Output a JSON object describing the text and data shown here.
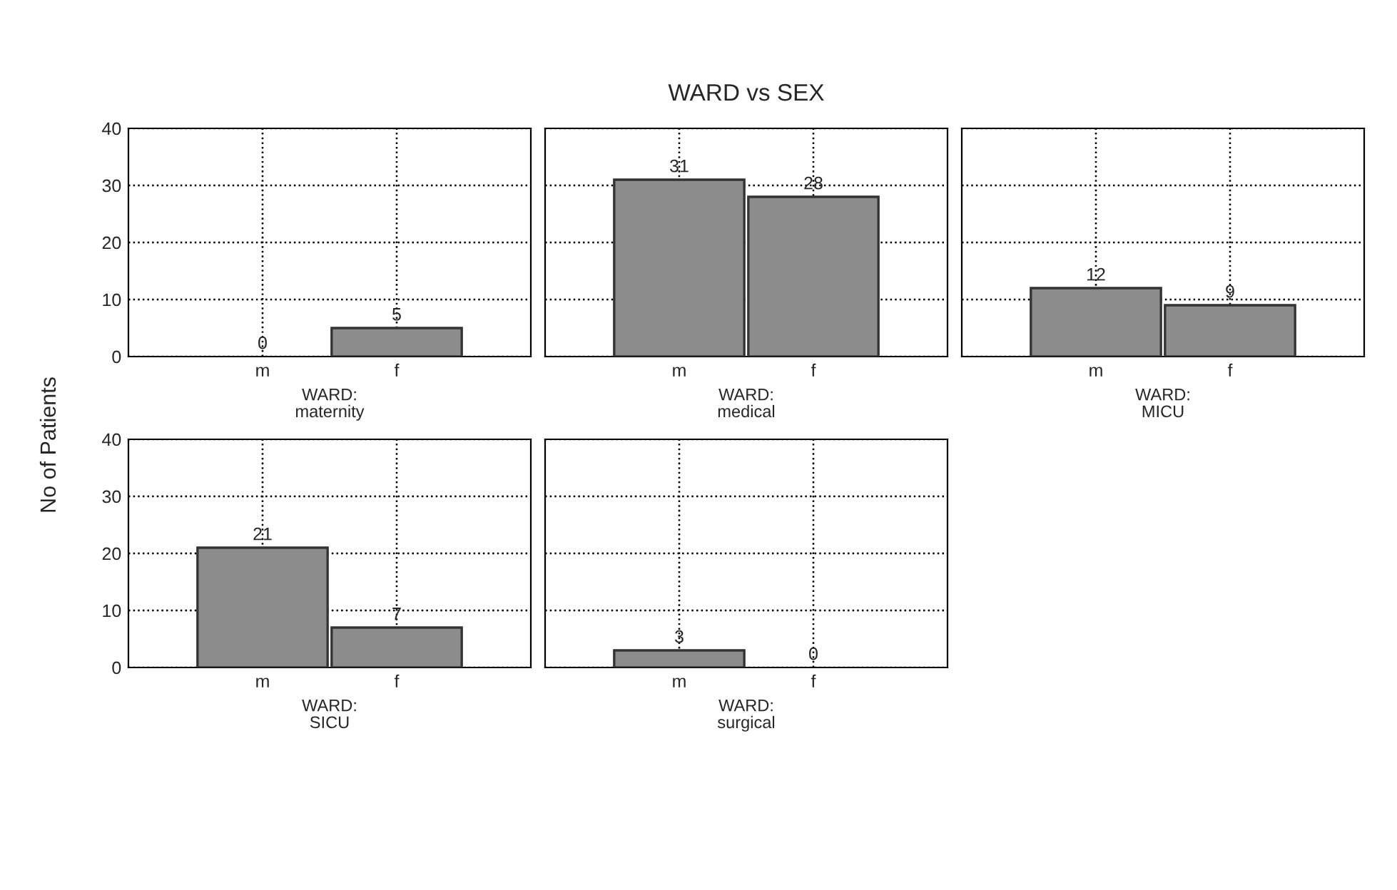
{
  "chart_data": [
    {
      "type": "bar",
      "ylabel": "No of Patients",
      "xlabel": "WARD:\nmaternity",
      "categories": [
        "m",
        "f"
      ],
      "values": [
        0,
        5
      ],
      "color": "#8c8c8c",
      "ylim": [
        0,
        40
      ],
      "yticks": [
        0,
        10,
        20,
        30,
        40
      ],
      "grid": true,
      "data_labels": true
    },
    {
      "type": "bar",
      "title": "WARD vs SEX",
      "xlabel": "WARD:\nmedical",
      "categories": [
        "m",
        "f"
      ],
      "values": [
        31,
        28
      ],
      "color": "#8c8c8c",
      "ylim": [
        0,
        40
      ],
      "yticks": [
        0,
        10,
        20,
        30,
        40
      ],
      "grid": true,
      "data_labels": true,
      "tick_labels": "x"
    },
    {
      "type": "bar",
      "xlabel": "WARD:\nMICU",
      "categories": [
        "m",
        "f"
      ],
      "values": [
        12,
        9
      ],
      "color": "#8c8c8c",
      "ylim": [
        0,
        40
      ],
      "yticks": [
        0,
        10,
        20,
        30,
        40
      ],
      "grid": true,
      "data_labels": true,
      "tick_labels": "x"
    },
    {
      "type": "bar",
      "xlabel": "WARD:\nSICU",
      "categories": [
        "m",
        "f"
      ],
      "values": [
        21,
        7
      ],
      "color": "#8c8c8c",
      "ylim": [
        0,
        40
      ],
      "yticks": [
        0,
        10,
        20,
        30,
        40
      ],
      "grid": true,
      "data_labels": true
    },
    {
      "type": "bar",
      "xlabel": "WARD:\nsurgical",
      "categories": [
        "m",
        "f"
      ],
      "values": [
        3,
        0
      ],
      "color": "#8c8c8c",
      "ylim": [
        0,
        40
      ],
      "yticks": [
        0,
        10,
        20,
        30,
        40
      ],
      "grid": true,
      "data_labels": true,
      "tick_labels": "x"
    }
  ]
}
